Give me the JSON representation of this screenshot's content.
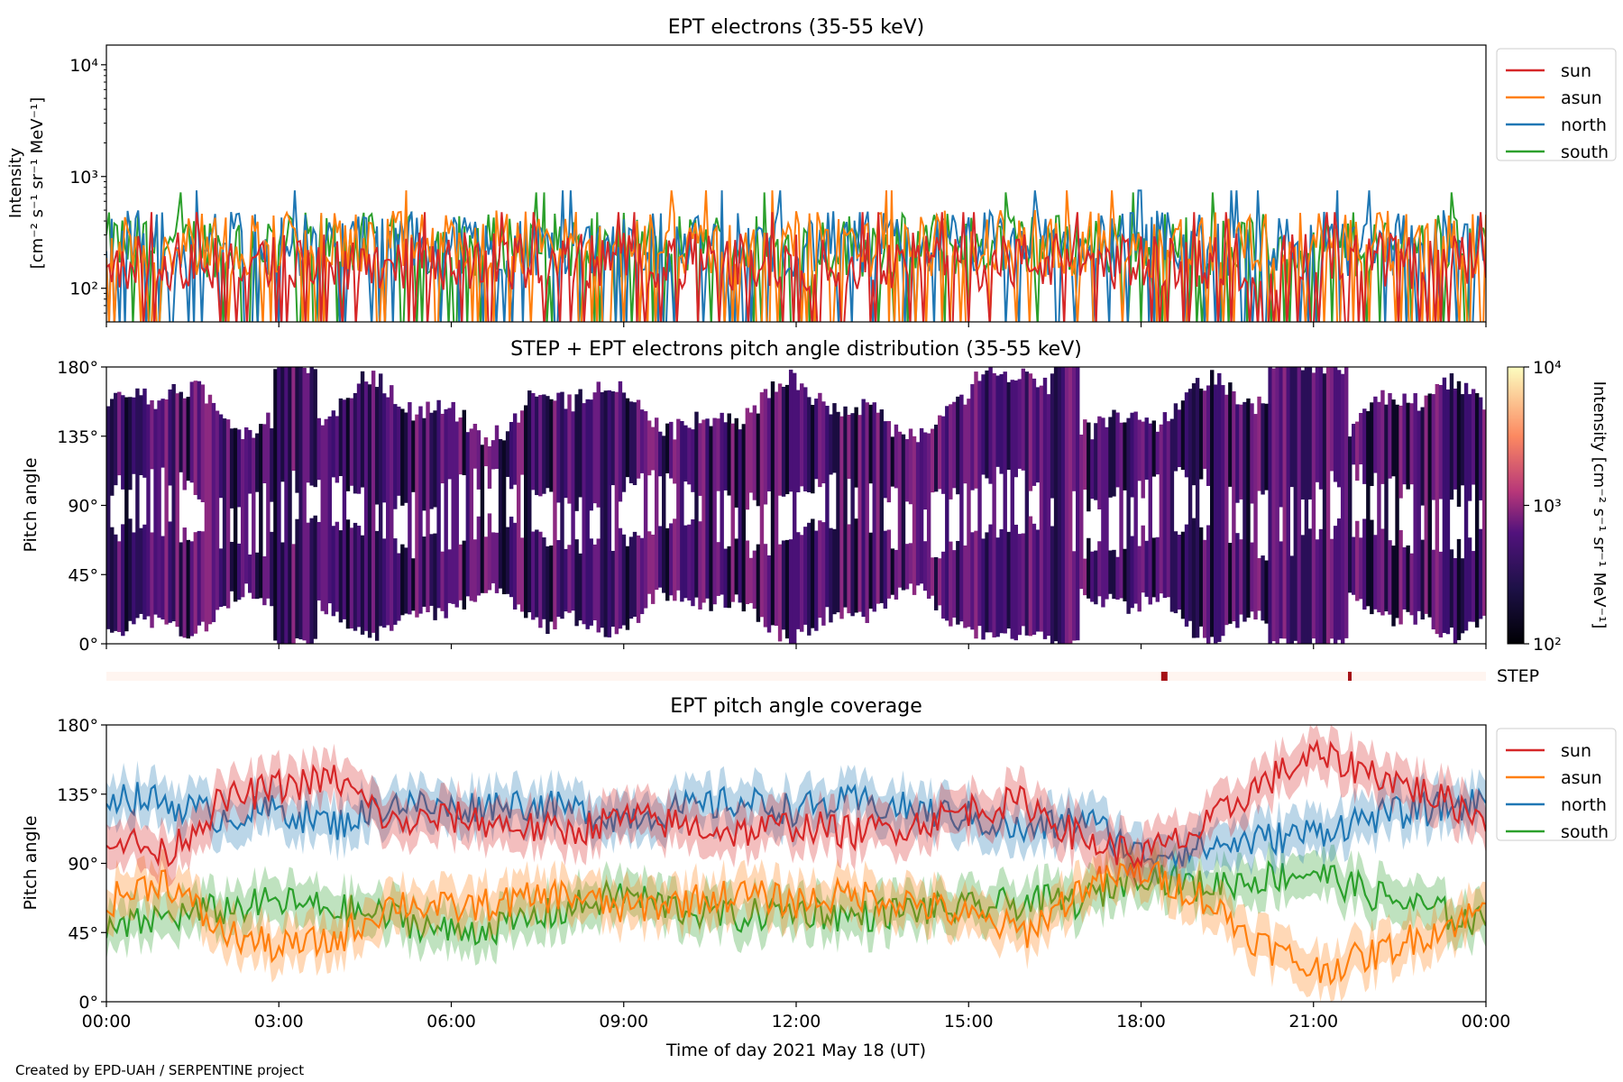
{
  "figure": {
    "footer": "Created by EPD-UAH / SERPENTINE project",
    "xlabel": "Time of day 2021 May 18 (UT)",
    "xticks": [
      "00:00",
      "03:00",
      "06:00",
      "09:00",
      "12:00",
      "15:00",
      "18:00",
      "21:00",
      "00:00"
    ],
    "colors": {
      "sun": "#d62728",
      "asun": "#ff7f0e",
      "north": "#1f77b4",
      "south": "#2ca02c"
    }
  },
  "chart_data": [
    {
      "type": "line",
      "title": "EPT electrons (35-55 keV)",
      "ylabel_line1": "Intensity",
      "ylabel_line2": "[cm⁻² s⁻¹ sr⁻¹ MeV⁻¹]",
      "yscale": "log",
      "ylim": [
        50,
        15000
      ],
      "yticks": [
        "10²",
        "10³",
        "10⁴"
      ],
      "x_range_hours": [
        0,
        24
      ],
      "legend_position": "upper-right-outside",
      "series": [
        {
          "name": "sun",
          "typical_range": [
            50,
            320
          ]
        },
        {
          "name": "asun",
          "typical_range": [
            60,
            500
          ]
        },
        {
          "name": "north",
          "typical_range": [
            60,
            500
          ]
        },
        {
          "name": "south",
          "typical_range": [
            60,
            480
          ]
        }
      ]
    },
    {
      "type": "heatmap",
      "title": "STEP + EPT electrons pitch angle distribution (35-55 keV)",
      "ylabel": "Pitch angle",
      "ylim": [
        0,
        180
      ],
      "yticks": [
        "0°",
        "45°",
        "90°",
        "135°",
        "180°"
      ],
      "colorbar": {
        "label": "Intensity [cm⁻² s⁻¹ sr⁻¹ MeV⁻¹]",
        "scale": "log",
        "range": [
          100,
          10000
        ],
        "ticks": [
          "10²",
          "10³",
          "10⁴"
        ]
      },
      "step_label": "STEP",
      "step_marks_hours": [
        18.35,
        21.6
      ]
    },
    {
      "type": "line",
      "title": "EPT pitch angle coverage",
      "ylabel": "Pitch angle",
      "ylim": [
        0,
        180
      ],
      "yticks": [
        "0°",
        "45°",
        "90°",
        "135°",
        "180°"
      ],
      "x_range_hours": [
        0,
        24
      ],
      "legend_position": "upper-right-outside",
      "series": [
        {
          "name": "sun",
          "x": [
            0,
            1,
            2,
            3,
            4,
            5,
            6,
            7,
            8,
            9,
            10,
            11,
            12,
            13,
            14,
            15,
            16,
            17,
            18,
            19,
            20,
            21,
            22,
            23,
            24
          ],
          "y": [
            110,
            95,
            130,
            140,
            145,
            115,
            120,
            115,
            110,
            120,
            115,
            110,
            115,
            110,
            115,
            125,
            130,
            105,
            95,
            110,
            140,
            160,
            150,
            135,
            120
          ]
        },
        {
          "name": "asun",
          "x": [
            0,
            1,
            2,
            3,
            4,
            5,
            6,
            7,
            8,
            9,
            10,
            11,
            12,
            13,
            14,
            15,
            16,
            17,
            18,
            19,
            20,
            21,
            22,
            23,
            24
          ],
          "y": [
            65,
            80,
            45,
            35,
            40,
            65,
            60,
            65,
            70,
            60,
            65,
            70,
            65,
            70,
            65,
            55,
            45,
            75,
            85,
            70,
            40,
            20,
            30,
            45,
            60
          ]
        },
        {
          "name": "north",
          "x": [
            0,
            1,
            2,
            3,
            4,
            5,
            6,
            7,
            8,
            9,
            10,
            11,
            12,
            13,
            14,
            15,
            16,
            17,
            18,
            19,
            20,
            21,
            22,
            23,
            24
          ],
          "y": [
            135,
            130,
            120,
            125,
            115,
            130,
            125,
            130,
            125,
            120,
            125,
            130,
            125,
            130,
            125,
            120,
            110,
            120,
            95,
            100,
            105,
            110,
            120,
            125,
            130
          ]
        },
        {
          "name": "south",
          "x": [
            0,
            1,
            2,
            3,
            4,
            5,
            6,
            7,
            8,
            9,
            10,
            11,
            12,
            13,
            14,
            15,
            16,
            17,
            18,
            19,
            20,
            21,
            22,
            23,
            24
          ],
          "y": [
            45,
            55,
            60,
            65,
            60,
            55,
            45,
            50,
            60,
            70,
            60,
            55,
            60,
            55,
            60,
            60,
            65,
            65,
            85,
            75,
            80,
            85,
            70,
            60,
            50
          ]
        }
      ]
    }
  ]
}
